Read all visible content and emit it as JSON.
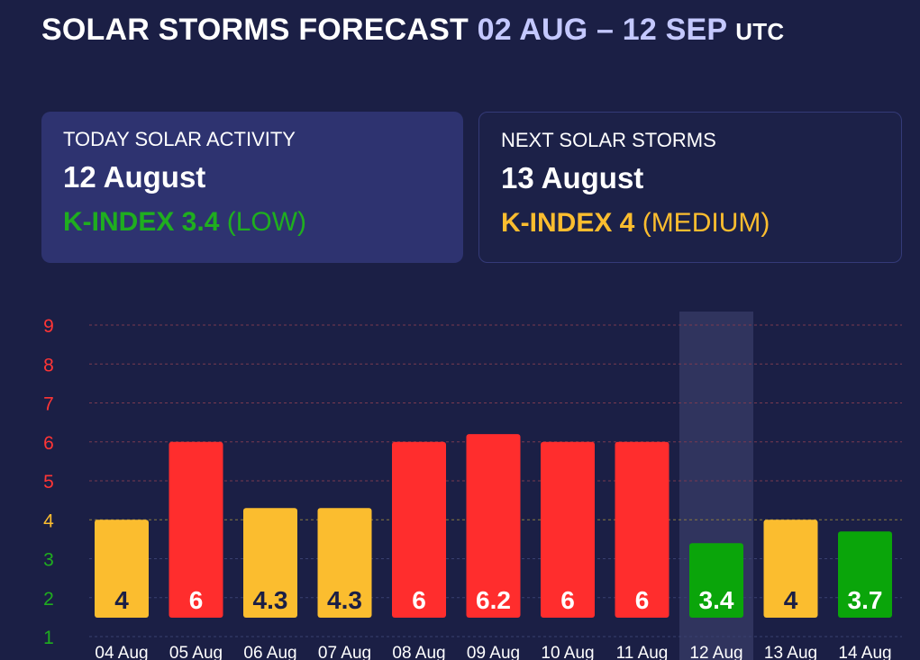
{
  "header": {
    "title": "SOLAR STORMS FORECAST",
    "date_range": "02 AUG – 12 SEP",
    "timezone": "UTC"
  },
  "today": {
    "label": "TODAY SOLAR ACTIVITY",
    "date": "12 August",
    "kindex_label": "K-INDEX 3.4",
    "level": "(LOW)"
  },
  "next": {
    "label": "NEXT SOLAR STORMS",
    "date": "13 August",
    "kindex_label": "K-INDEX 4",
    "level": "(MEDIUM)"
  },
  "chart_data": {
    "type": "bar",
    "categories": [
      "04 Aug",
      "05 Aug",
      "06 Aug",
      "07 Aug",
      "08 Aug",
      "09 Aug",
      "10 Aug",
      "11 Aug",
      "12 Aug",
      "13 Aug",
      "14 Aug"
    ],
    "values": [
      4,
      6,
      4.3,
      4.3,
      6,
      6.2,
      6,
      6,
      3.4,
      4,
      3.7
    ],
    "value_labels": [
      "4",
      "6",
      "4.3",
      "4.3",
      "6",
      "6.2",
      "6",
      "6",
      "3.4",
      "4",
      "3.7"
    ],
    "yticks": [
      "1",
      "2",
      "3",
      "4",
      "5",
      "6",
      "7",
      "8",
      "9"
    ],
    "ylim": [
      1,
      9
    ],
    "highlighted_category": "12 Aug",
    "colors": {
      "low": "#0aa50a",
      "medium": "#fbbd2f",
      "high": "#ff2d2d",
      "highlight": "#30345e",
      "grid_low": "#3a4070",
      "grid_medium": "#8a7a40",
      "grid_high": "#7a3a50"
    },
    "tick_colors": [
      "#1fae1f",
      "#1fae1f",
      "#1fae1f",
      "#fbbd2f",
      "#ff3535",
      "#ff3535",
      "#ff3535",
      "#ff3535",
      "#ff3535"
    ]
  }
}
